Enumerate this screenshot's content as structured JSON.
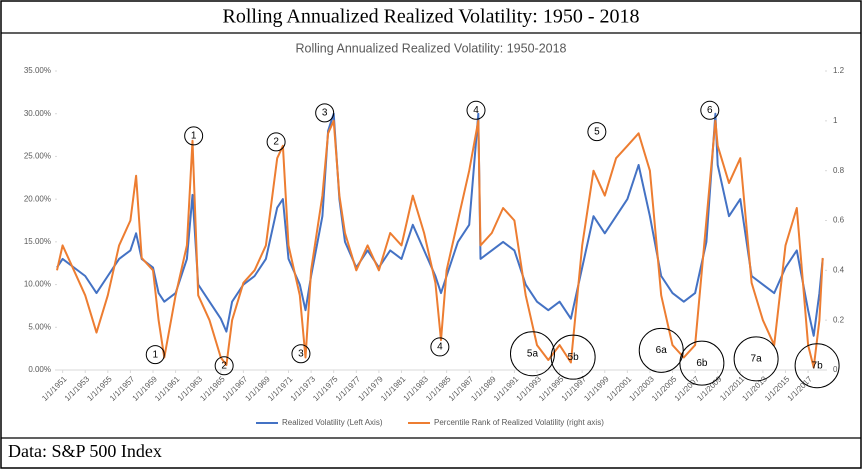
{
  "header": "Rolling Annualized Realized Volatility: 1950 - 2018",
  "footer": "Data: S&P 500 Index",
  "chart_data": {
    "type": "line",
    "title": "Rolling Annualized Realized Volatility: 1950-2018",
    "x": [
      1950.5,
      1951,
      1952,
      1953,
      1954,
      1955,
      1956,
      1957,
      1957.5,
      1958,
      1959,
      1959.5,
      1960,
      1961,
      1962,
      1962.5,
      1963,
      1964,
      1965,
      1965.5,
      1966,
      1967,
      1968,
      1969,
      1970,
      1970.5,
      1971,
      1972,
      1972.5,
      1973,
      1974,
      1974.5,
      1975,
      1975.5,
      1976,
      1977,
      1978,
      1979,
      1980,
      1981,
      1982,
      1983,
      1984,
      1984.5,
      1985,
      1986,
      1987,
      1987.8,
      1988,
      1989,
      1990,
      1991,
      1992,
      1993,
      1994,
      1995,
      1996,
      1997,
      1998,
      1999,
      2000,
      2001,
      2002,
      2003,
      2004,
      2005,
      2006,
      2007,
      2008,
      2008.8,
      2009,
      2010,
      2011,
      2012,
      2013,
      2014,
      2015,
      2016,
      2017,
      2017.5,
      2018,
      2018.3
    ],
    "series": [
      {
        "name": "Realized Volatility (Left Axis)",
        "color": "#4472c4",
        "values": [
          12,
          13,
          12,
          11,
          9,
          11,
          13,
          14,
          16,
          13,
          12,
          9,
          8,
          9,
          13,
          20.5,
          10,
          8,
          6,
          4.5,
          8,
          10,
          11,
          13,
          19,
          20,
          13,
          10,
          7,
          11,
          18,
          28,
          30,
          20,
          15,
          12,
          14,
          12,
          14,
          13,
          17,
          14,
          11,
          9,
          11,
          15,
          17,
          30,
          13,
          14,
          15,
          14,
          10,
          8,
          7,
          8,
          6,
          12,
          18,
          16,
          18,
          20,
          24,
          18,
          11,
          9,
          8,
          9,
          15,
          30,
          24,
          18,
          20,
          11,
          10,
          9,
          12,
          14,
          7,
          4,
          9,
          13
        ]
      },
      {
        "name": "Percentile Rank of Realized Volatility (right axis)",
        "color": "#ed7d31",
        "axis": "y2",
        "values": [
          0.4,
          0.5,
          0.4,
          0.3,
          0.15,
          0.3,
          0.5,
          0.6,
          0.78,
          0.45,
          0.4,
          0.2,
          0.05,
          0.3,
          0.5,
          0.92,
          0.3,
          0.2,
          0.05,
          0.02,
          0.2,
          0.35,
          0.4,
          0.5,
          0.85,
          0.9,
          0.5,
          0.3,
          0.05,
          0.4,
          0.7,
          0.95,
          1.0,
          0.7,
          0.55,
          0.4,
          0.5,
          0.4,
          0.55,
          0.5,
          0.7,
          0.55,
          0.35,
          0.12,
          0.4,
          0.6,
          0.8,
          1.0,
          0.5,
          0.55,
          0.65,
          0.6,
          0.3,
          0.1,
          0.04,
          0.1,
          0.03,
          0.5,
          0.8,
          0.7,
          0.85,
          0.9,
          0.95,
          0.8,
          0.3,
          0.1,
          0.05,
          0.1,
          0.6,
          1.0,
          0.9,
          0.75,
          0.85,
          0.35,
          0.2,
          0.1,
          0.5,
          0.65,
          0.1,
          0.01,
          0.2,
          0.45
        ]
      }
    ],
    "xlim": [
      1950.5,
      2018.5
    ],
    "xticks": [
      {
        "value": 1951,
        "label": "1/1/1951"
      },
      {
        "value": 1953,
        "label": "1/1/1953"
      },
      {
        "value": 1955,
        "label": "1/1/1955"
      },
      {
        "value": 1957,
        "label": "1/1/1957"
      },
      {
        "value": 1959,
        "label": "1/1/1959"
      },
      {
        "value": 1961,
        "label": "1/1/1961"
      },
      {
        "value": 1963,
        "label": "1/1/1963"
      },
      {
        "value": 1965,
        "label": "1/1/1965"
      },
      {
        "value": 1967,
        "label": "1/1/1967"
      },
      {
        "value": 1969,
        "label": "1/1/1969"
      },
      {
        "value": 1971,
        "label": "1/1/1971"
      },
      {
        "value": 1973,
        "label": "1/1/1973"
      },
      {
        "value": 1975,
        "label": "1/1/1975"
      },
      {
        "value": 1977,
        "label": "1/1/1977"
      },
      {
        "value": 1979,
        "label": "1/1/1979"
      },
      {
        "value": 1981,
        "label": "1/1/1981"
      },
      {
        "value": 1983,
        "label": "1/1/1983"
      },
      {
        "value": 1985,
        "label": "1/1/1985"
      },
      {
        "value": 1987,
        "label": "1/1/1987"
      },
      {
        "value": 1989,
        "label": "1/1/1989"
      },
      {
        "value": 1991,
        "label": "1/1/1991"
      },
      {
        "value": 1993,
        "label": "1/1/1993"
      },
      {
        "value": 1995,
        "label": "1/1/1995"
      },
      {
        "value": 1997,
        "label": "1/1/1997"
      },
      {
        "value": 1999,
        "label": "1/1/1999"
      },
      {
        "value": 2001,
        "label": "1/1/2001"
      },
      {
        "value": 2003,
        "label": "1/1/2003"
      },
      {
        "value": 2005,
        "label": "1/1/2005"
      },
      {
        "value": 2007,
        "label": "1/1/2007"
      },
      {
        "value": 2009,
        "label": "1/1/2009"
      },
      {
        "value": 2011,
        "label": "1/1/2011"
      },
      {
        "value": 2013,
        "label": "1/1/2013"
      },
      {
        "value": 2015,
        "label": "1/1/2015"
      },
      {
        "value": 2017,
        "label": "1/1/2017"
      }
    ],
    "ylim": [
      0,
      35
    ],
    "yticks": [
      {
        "value": 0,
        "label": "0.00%"
      },
      {
        "value": 5,
        "label": "5.00%"
      },
      {
        "value": 10,
        "label": "10.00%"
      },
      {
        "value": 15,
        "label": "15.00%"
      },
      {
        "value": 20,
        "label": "20.00%"
      },
      {
        "value": 25,
        "label": "25.00%"
      },
      {
        "value": 30,
        "label": "30.00%"
      },
      {
        "value": 35,
        "label": "35.00%"
      }
    ],
    "y2lim": [
      0,
      1.2
    ],
    "y2ticks": [
      0,
      0.2,
      0.4,
      0.6,
      0.8,
      1,
      1.2
    ],
    "annotations": [
      {
        "text": "1",
        "x": 1962.6,
        "y": 27.4
      },
      {
        "text": "2",
        "x": 1969.9,
        "y": 26.7
      },
      {
        "text": "3",
        "x": 1974.2,
        "y": 30.1
      },
      {
        "text": "4",
        "x": 1987.6,
        "y": 30.4
      },
      {
        "text": "5",
        "x": 1998.3,
        "y": 27.9
      },
      {
        "text": "6",
        "x": 2008.3,
        "y": 30.4
      },
      {
        "text": "1",
        "x": 1959.2,
        "y": 1.8
      },
      {
        "text": "2",
        "x": 1965.3,
        "y": 0.5
      },
      {
        "text": "3",
        "x": 1972.1,
        "y": 1.9
      },
      {
        "text": "4",
        "x": 1984.4,
        "y": 2.7
      },
      {
        "text": "5a",
        "x": 1992.6,
        "y": 1.9
      },
      {
        "text": "5b",
        "x": 1996.2,
        "y": 1.5
      },
      {
        "text": "6a",
        "x": 2004.0,
        "y": 2.3
      },
      {
        "text": "6b",
        "x": 2007.6,
        "y": 0.8
      },
      {
        "text": "7a",
        "x": 2012.4,
        "y": 1.3
      },
      {
        "text": "7b",
        "x": 2017.8,
        "y": 0.5
      }
    ]
  }
}
